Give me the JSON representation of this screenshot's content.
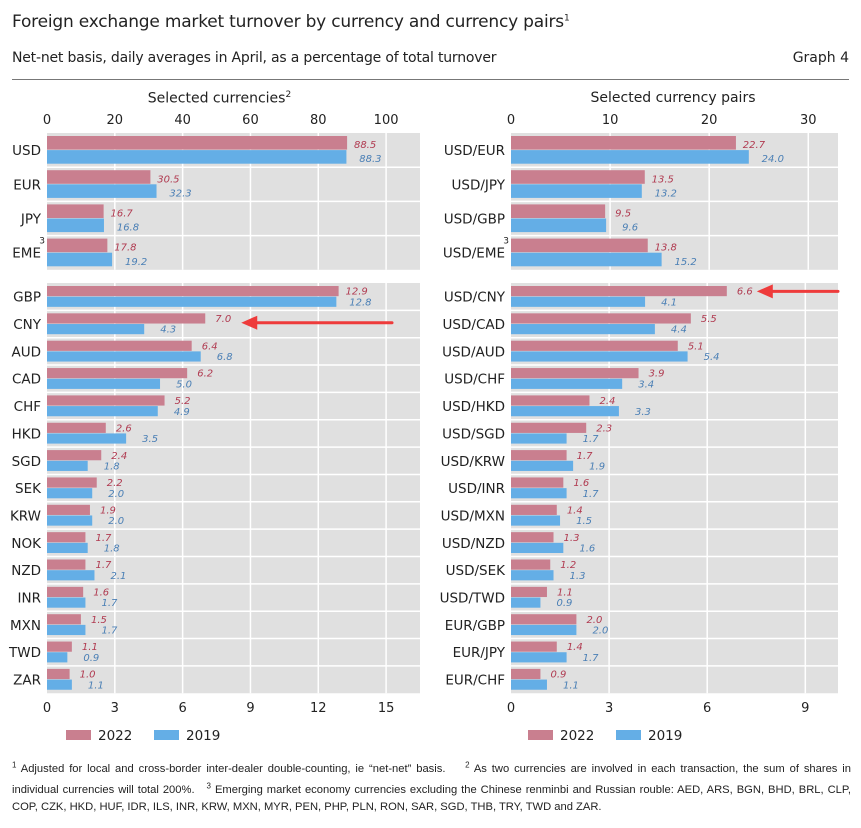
{
  "header": {
    "title": "Foreign exchange market turnover by currency and currency pairs",
    "title_footnote": "1",
    "subtitle": "Net-net basis, daily averages in April, as a percentage of total turnover",
    "graph_number": "Graph 4"
  },
  "colors": {
    "series_2022": "#c97f8f",
    "series_2019": "#64aee6",
    "label_2022": "#b03a50",
    "label_2019": "#4a7fb5",
    "panel_bg": "#e0e0e0",
    "annotation_arrow": "#ee3b3b"
  },
  "legend": [
    {
      "label": "2022"
    },
    {
      "label": "2019"
    }
  ],
  "chart_data": [
    {
      "type": "bar",
      "orientation": "horizontal",
      "title": "Selected currencies",
      "title_footnote": "2",
      "legend": [
        "2022",
        "2019"
      ],
      "legend_position": "bottom",
      "grid": true,
      "panels": [
        {
          "axis": "top",
          "xlim": [
            0,
            110
          ],
          "ticks": [
            0,
            20,
            40,
            60,
            80,
            100
          ],
          "categories": [
            "USD",
            "EUR",
            "JPY",
            "EME"
          ],
          "category_footnotes": {
            "EME": "3"
          },
          "series": [
            {
              "name": "2022",
              "values": [
                88.5,
                30.5,
                16.7,
                17.8
              ]
            },
            {
              "name": "2019",
              "values": [
                88.3,
                32.3,
                16.8,
                19.2
              ]
            }
          ]
        },
        {
          "axis": "bottom",
          "xlim": [
            0,
            16.5
          ],
          "ticks": [
            0,
            3,
            6,
            9,
            12,
            15
          ],
          "categories": [
            "GBP",
            "CNY",
            "AUD",
            "CAD",
            "CHF",
            "HKD",
            "SGD",
            "SEK",
            "KRW",
            "NOK",
            "NZD",
            "INR",
            "MXN",
            "TWD",
            "ZAR"
          ],
          "series": [
            {
              "name": "2022",
              "values": [
                12.9,
                7.0,
                6.4,
                6.2,
                5.2,
                2.6,
                2.4,
                2.2,
                1.9,
                1.7,
                1.7,
                1.6,
                1.5,
                1.1,
                1.0
              ]
            },
            {
              "name": "2019",
              "values": [
                12.8,
                4.3,
                6.8,
                5.0,
                4.9,
                3.5,
                1.8,
                2.0,
                2.0,
                1.8,
                2.1,
                1.7,
                1.7,
                0.9,
                1.1
              ]
            }
          ],
          "annotations": [
            {
              "type": "arrow",
              "target": "CNY 2022"
            }
          ]
        }
      ]
    },
    {
      "type": "bar",
      "orientation": "horizontal",
      "title": "Selected currency pairs",
      "legend": [
        "2022",
        "2019"
      ],
      "legend_position": "bottom",
      "grid": true,
      "panels": [
        {
          "axis": "top",
          "xlim": [
            0,
            33
          ],
          "ticks": [
            0,
            10,
            20,
            30
          ],
          "categories": [
            "USD/EUR",
            "USD/JPY",
            "USD/GBP",
            "USD/EME"
          ],
          "category_footnotes": {
            "USD/EME": "3"
          },
          "series": [
            {
              "name": "2022",
              "values": [
                22.7,
                13.5,
                9.5,
                13.8
              ]
            },
            {
              "name": "2019",
              "values": [
                24.0,
                13.2,
                9.6,
                15.2
              ]
            }
          ]
        },
        {
          "axis": "bottom",
          "xlim": [
            0,
            10
          ],
          "ticks": [
            0,
            3,
            6,
            9
          ],
          "categories": [
            "USD/CNY",
            "USD/CAD",
            "USD/AUD",
            "USD/CHF",
            "USD/HKD",
            "USD/SGD",
            "USD/KRW",
            "USD/INR",
            "USD/MXN",
            "USD/NZD",
            "USD/SEK",
            "USD/TWD",
            "EUR/GBP",
            "EUR/JPY",
            "EUR/CHF"
          ],
          "series": [
            {
              "name": "2022",
              "values": [
                6.6,
                5.5,
                5.1,
                3.9,
                2.4,
                2.3,
                1.7,
                1.6,
                1.4,
                1.3,
                1.2,
                1.1,
                2.0,
                1.4,
                0.9
              ]
            },
            {
              "name": "2019",
              "values": [
                4.1,
                4.4,
                5.4,
                3.4,
                3.3,
                1.7,
                1.9,
                1.7,
                1.5,
                1.6,
                1.3,
                0.9,
                2.0,
                1.7,
                1.1
              ]
            }
          ],
          "annotations": [
            {
              "type": "arrow",
              "target": "USD/CNY 2022"
            }
          ]
        }
      ]
    }
  ],
  "footnotes": [
    {
      "marker": "1",
      "text": "Adjusted for local and cross-border inter-dealer double-counting, ie “net-net” basis."
    },
    {
      "marker": "2",
      "text": "As two currencies are involved in each transaction, the sum of shares in individual currencies will total 200%."
    },
    {
      "marker": "3",
      "text": "Emerging market economy currencies excluding the Chinese renminbi and Russian rouble: AED, ARS, BGN, BHD, BRL, CLP, COP, CZK, HKD, HUF, IDR, ILS, INR, KRW, MXN, MYR, PEN, PHP, PLN, RON, SAR, SGD, THB, TRY, TWD and ZAR."
    }
  ]
}
